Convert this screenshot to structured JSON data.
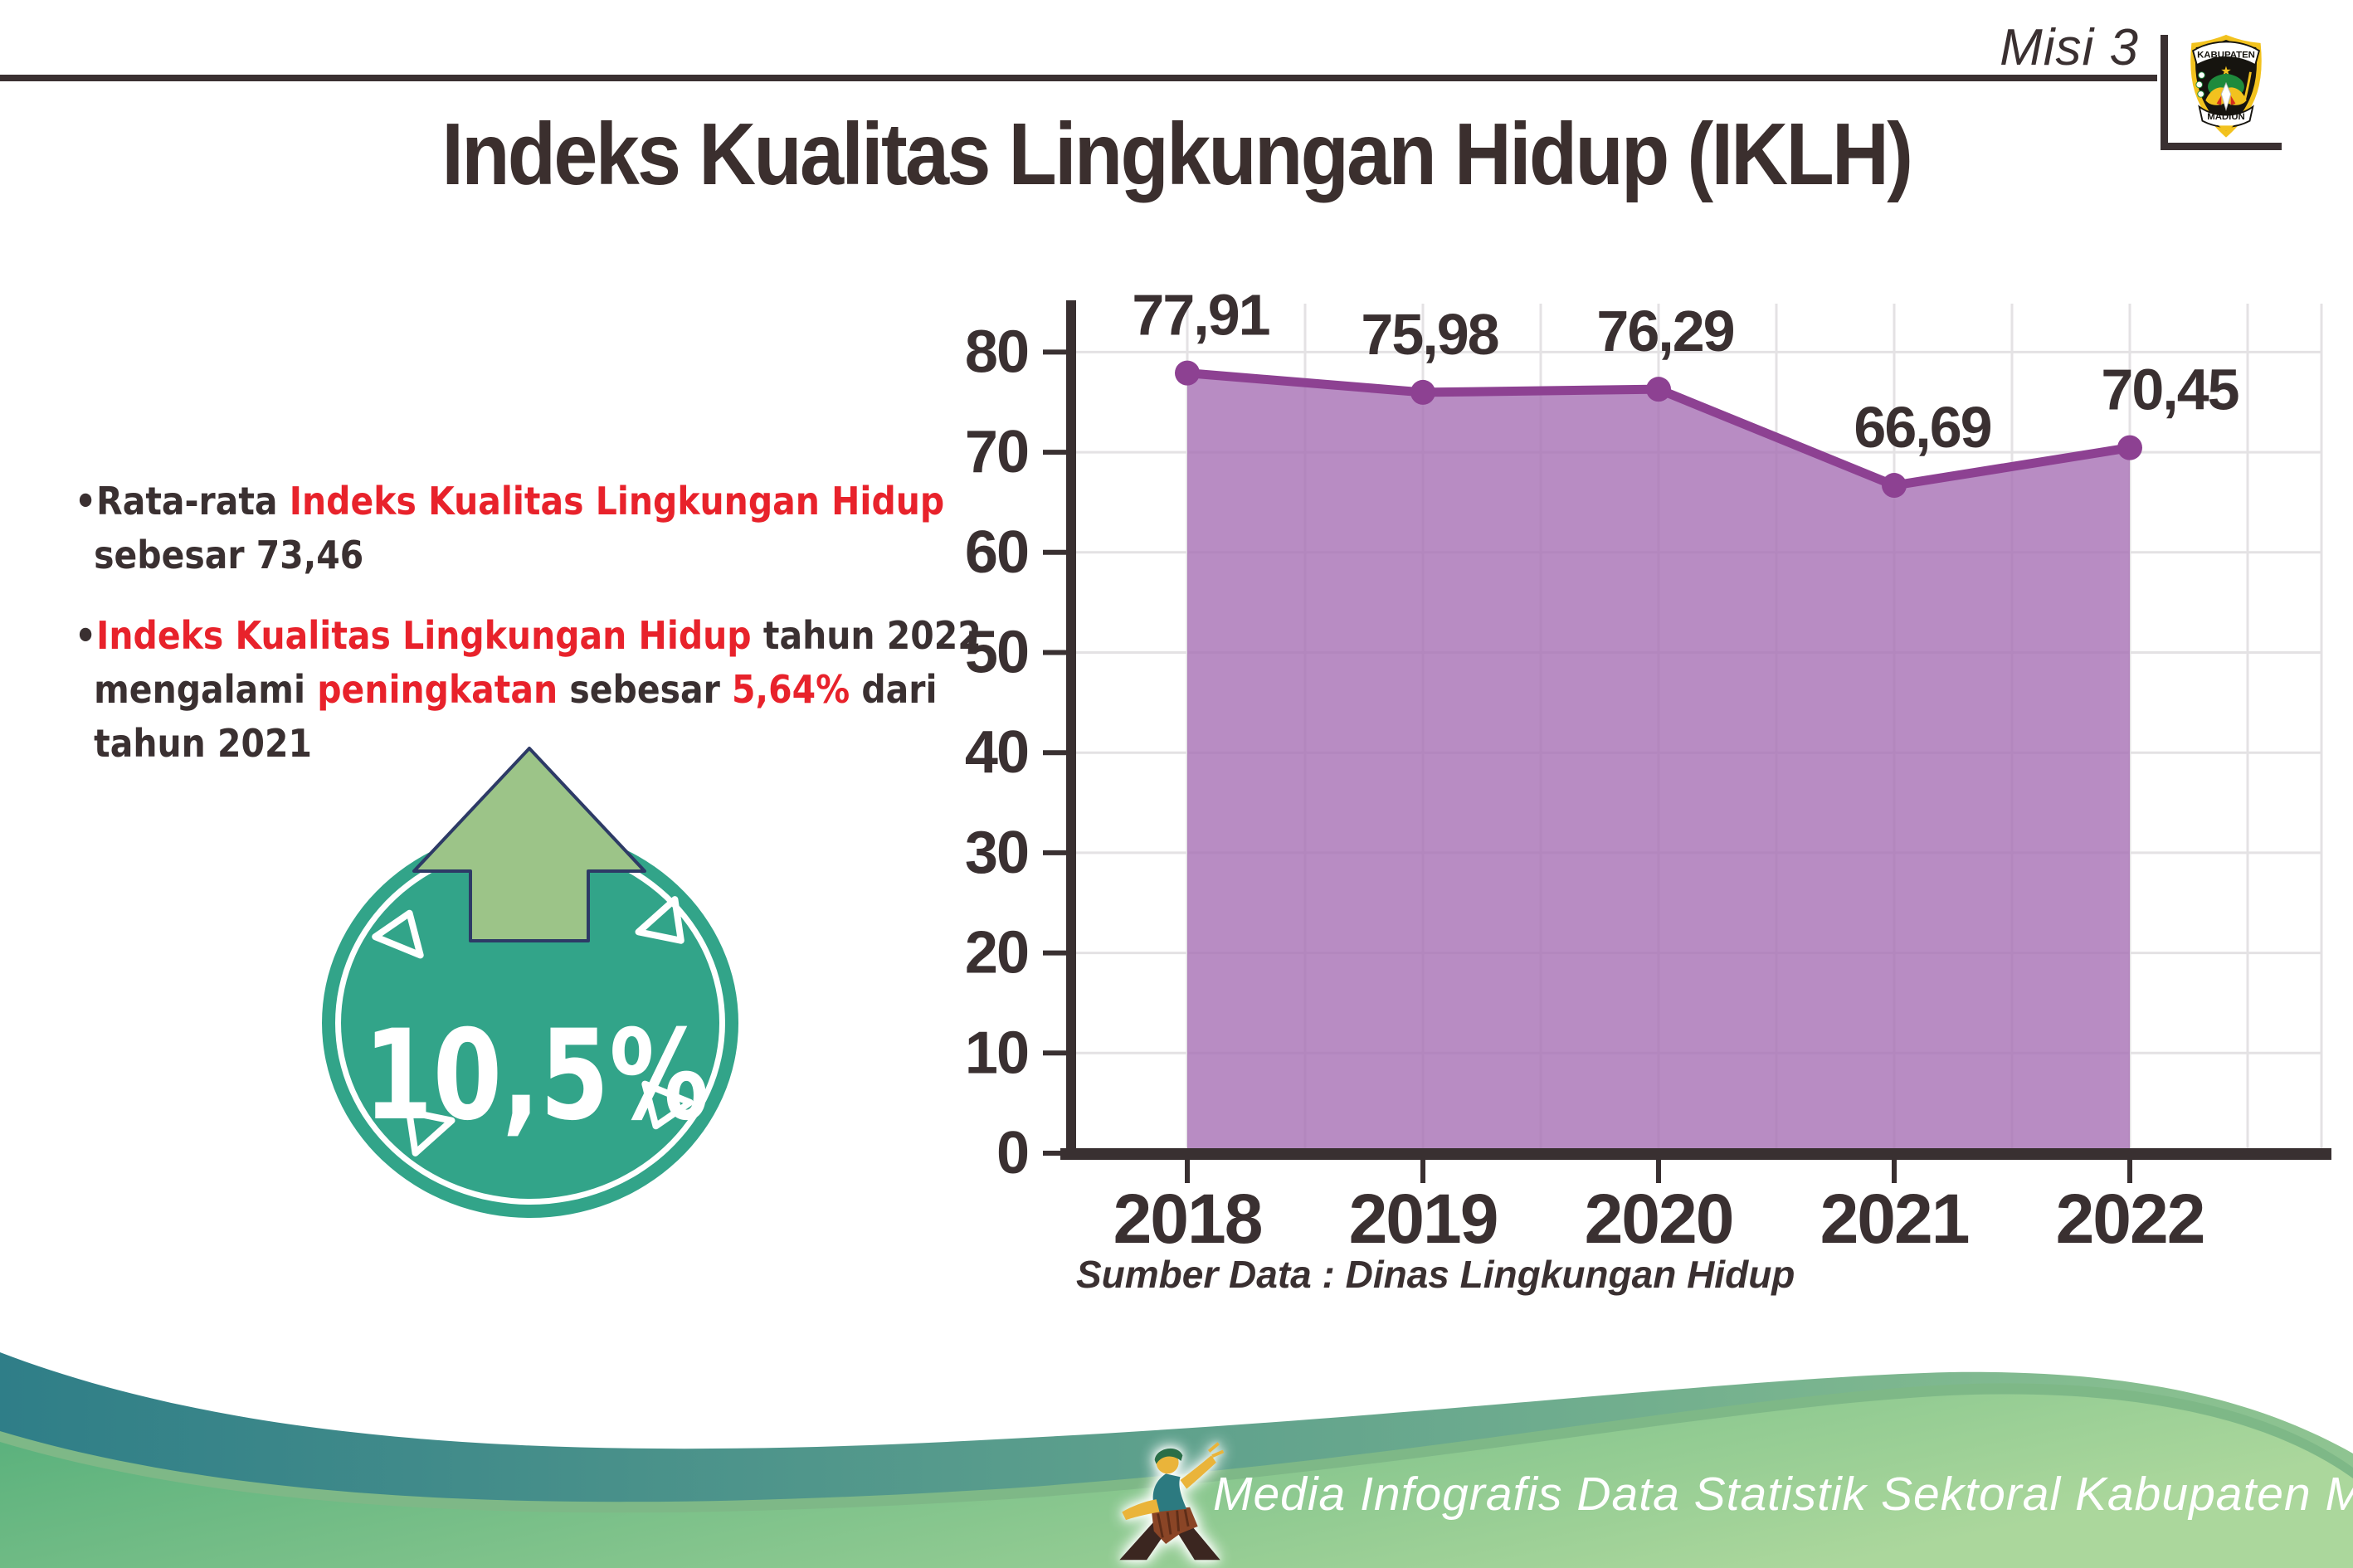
{
  "header": {
    "misi_label": "Misi 3",
    "logo": {
      "top_text": "KABUPATEN",
      "bottom_text": "MADIUN"
    }
  },
  "title": "Indeks Kualitas Lingkungan Hidup (IKLH)",
  "colors": {
    "text_dark": "#3a3031",
    "accent_red": "#e8222b",
    "badge_teal": "#32a489",
    "arrow_green": "#9cc488",
    "arrow_outline": "#2d3a66"
  },
  "bullets": [
    {
      "lines": [
        [
          {
            "t": "•Rata-rata ",
            "c": "dark"
          },
          {
            "t": "Indeks Kualitas Lingkungan Hidup",
            "c": "red"
          }
        ],
        [
          {
            "t": "sebesar 73,46",
            "c": "dark"
          }
        ]
      ]
    },
    {
      "lines": [
        [
          {
            "t": "•",
            "c": "dark"
          },
          {
            "t": "Indeks Kualitas Lingkungan Hidup",
            "c": "red"
          },
          {
            "t": " tahun 2022",
            "c": "dark"
          }
        ],
        [
          {
            "t": "mengalami ",
            "c": "dark"
          },
          {
            "t": "peningkatan",
            "c": "red"
          },
          {
            "t": " sebesar ",
            "c": "dark"
          },
          {
            "t": "5,64%",
            "c": "red"
          },
          {
            "t": " dari",
            "c": "dark"
          }
        ],
        [
          {
            "t": "tahun 2021",
            "c": "dark"
          }
        ]
      ]
    }
  ],
  "badge": {
    "value": "10,5%",
    "direction": "up-arrow-icon"
  },
  "chart_data": {
    "type": "area",
    "categories": [
      "2018",
      "2019",
      "2020",
      "2021",
      "2022"
    ],
    "values": [
      77.91,
      75.98,
      76.29,
      66.69,
      70.45
    ],
    "point_labels": [
      "77,91",
      "75,98",
      "76,29",
      "66,69",
      "70,45"
    ],
    "title": "",
    "xlabel": "",
    "ylabel": "",
    "ylim": [
      0,
      80
    ],
    "ytick_step": 10,
    "grid": true,
    "legend": "none",
    "source_note": "Sumber Data : Dinas Lingkungan Hidup",
    "line_color": "#8d4192",
    "fill_color": "#a873b6",
    "axis_color": "#393031",
    "grid_color": "#e4e2e4",
    "label_color": "#3a3031"
  },
  "footer": {
    "text": "Media Infografis Data Statistik Sektoral Kabupaten Madiun |",
    "wave_teal_start": "#2f7e88",
    "wave_teal_end": "#8fc491",
    "wave_green_start": "#54ae7a",
    "wave_green_end": "#abd79c",
    "wave_rim": "#7eb887",
    "mascot_icon": "dancer-mascot-icon"
  }
}
